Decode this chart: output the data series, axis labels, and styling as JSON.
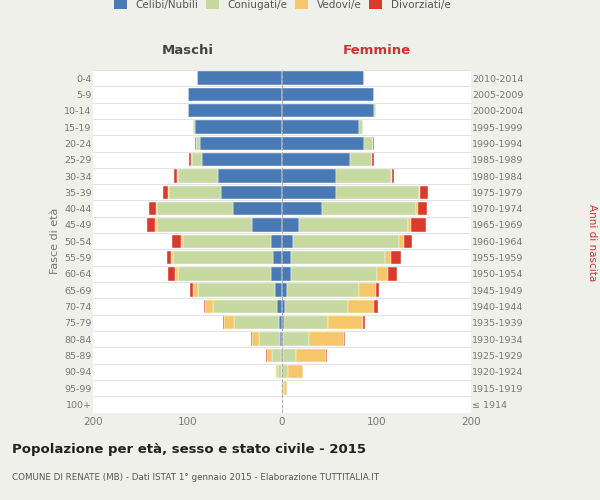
{
  "age_groups": [
    "100+",
    "95-99",
    "90-94",
    "85-89",
    "80-84",
    "75-79",
    "70-74",
    "65-69",
    "60-64",
    "55-59",
    "50-54",
    "45-49",
    "40-44",
    "35-39",
    "30-34",
    "25-29",
    "20-24",
    "15-19",
    "10-14",
    "5-9",
    "0-4"
  ],
  "birth_years": [
    "≤ 1914",
    "1915-1919",
    "1920-1924",
    "1925-1929",
    "1930-1934",
    "1935-1939",
    "1940-1944",
    "1945-1949",
    "1950-1954",
    "1955-1959",
    "1960-1964",
    "1965-1969",
    "1970-1974",
    "1975-1979",
    "1980-1984",
    "1985-1989",
    "1990-1994",
    "1995-1999",
    "2000-2004",
    "2005-2009",
    "2010-2014"
  ],
  "males": {
    "celibi": [
      0,
      0,
      0,
      1,
      2,
      3,
      5,
      7,
      12,
      10,
      12,
      32,
      52,
      65,
      68,
      85,
      87,
      92,
      100,
      100,
      90
    ],
    "coniugati": [
      0,
      1,
      4,
      10,
      22,
      48,
      68,
      82,
      98,
      105,
      93,
      100,
      80,
      55,
      42,
      10,
      4,
      2,
      0,
      0,
      0
    ],
    "vedovi": [
      0,
      0,
      2,
      5,
      8,
      10,
      8,
      5,
      3,
      2,
      2,
      2,
      1,
      1,
      1,
      1,
      0,
      0,
      0,
      0,
      0
    ],
    "divorziati": [
      0,
      0,
      0,
      1,
      1,
      1,
      2,
      3,
      8,
      5,
      9,
      9,
      8,
      5,
      3,
      2,
      1,
      0,
      0,
      0,
      0
    ]
  },
  "females": {
    "nubili": [
      0,
      0,
      0,
      1,
      1,
      2,
      3,
      5,
      9,
      9,
      12,
      18,
      42,
      57,
      57,
      72,
      87,
      82,
      97,
      97,
      87
    ],
    "coniugate": [
      0,
      2,
      6,
      14,
      28,
      47,
      67,
      77,
      92,
      100,
      112,
      115,
      100,
      88,
      58,
      23,
      9,
      4,
      2,
      0,
      0
    ],
    "vedove": [
      0,
      3,
      16,
      32,
      37,
      37,
      27,
      17,
      11,
      6,
      5,
      3,
      2,
      1,
      1,
      0,
      0,
      0,
      0,
      0,
      0
    ],
    "divorziate": [
      0,
      0,
      0,
      1,
      1,
      2,
      5,
      4,
      10,
      11,
      9,
      16,
      9,
      9,
      3,
      2,
      1,
      0,
      0,
      0,
      0
    ]
  },
  "colors": {
    "celibi": "#4a7ab5",
    "coniugati": "#c5d9a0",
    "vedovi": "#f5c76a",
    "divorziati": "#d93a2b"
  },
  "xlim": 200,
  "title": "Popolazione per età, sesso e stato civile - 2015",
  "subtitle": "COMUNE DI RENATE (MB) - Dati ISTAT 1° gennaio 2015 - Elaborazione TUTTITALIA.IT",
  "ylabel_left": "Fasce di età",
  "ylabel_right": "Anni di nascita",
  "xlabel_maschi": "Maschi",
  "xlabel_femmine": "Femmine",
  "bg_color": "#f0f0eb",
  "plot_bg_color": "#ffffff",
  "maschi_color": "#444444",
  "femmine_color": "#cc3333",
  "anni_label_color": "#cc3333",
  "tick_color": "#777777",
  "grid_color": "#cccccc",
  "legend_labels": [
    "Celibi/Nubili",
    "Coniugati/e",
    "Vedovi/e",
    "Divorziati/e"
  ]
}
